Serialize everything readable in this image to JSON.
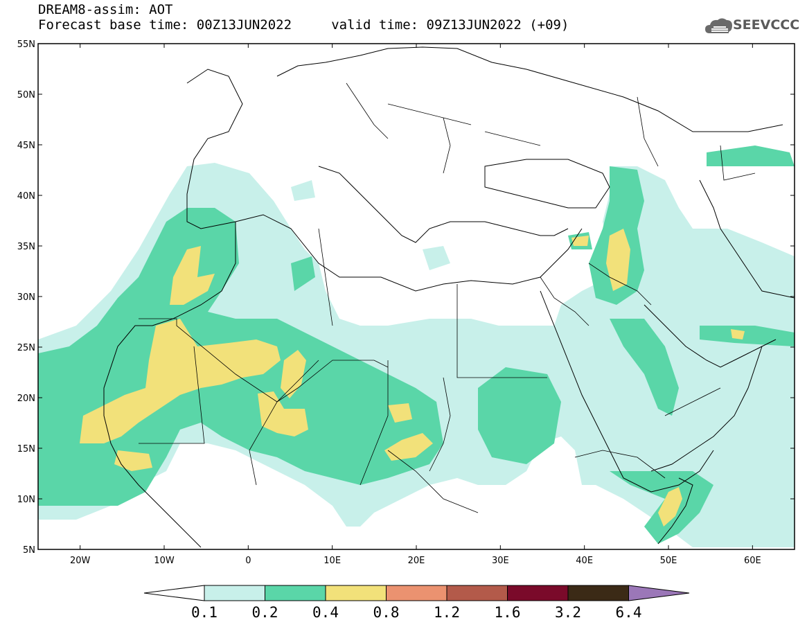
{
  "header": {
    "title_line1": "DREAM8-assim: AOT",
    "title_line2": "Forecast base time: 00Z13JUN2022     valid time: 09Z13JUN2022 (+09)",
    "logo_text": "SEEVCCC"
  },
  "map": {
    "lon_range": [
      -25,
      65
    ],
    "lat_range": [
      5,
      55
    ],
    "lat_labels": [
      "5N",
      "10N",
      "15N",
      "20N",
      "25N",
      "30N",
      "35N",
      "40N",
      "45N",
      "50N",
      "55N"
    ],
    "lon_labels": [
      "20W",
      "10W",
      "0",
      "10E",
      "20E",
      "30E",
      "40E",
      "50E",
      "60E"
    ],
    "lon_ticks": [
      -20,
      -10,
      0,
      10,
      20,
      30,
      40,
      50,
      60
    ],
    "lat_ticks": [
      5,
      10,
      15,
      20,
      25,
      30,
      35,
      40,
      45,
      50,
      55
    ]
  },
  "colorbar": {
    "labels": [
      "0.1",
      "0.2",
      "0.4",
      "0.8",
      "1.2",
      "1.6",
      "3.2",
      "6.4"
    ],
    "colors": [
      "#c8f0ea",
      "#5ad6a8",
      "#f2e17a",
      "#eb9270",
      "#b35a4a",
      "#7a0a2a",
      "#3b2a16",
      "#9b77b8"
    ],
    "under_color": "#ffffff"
  }
}
